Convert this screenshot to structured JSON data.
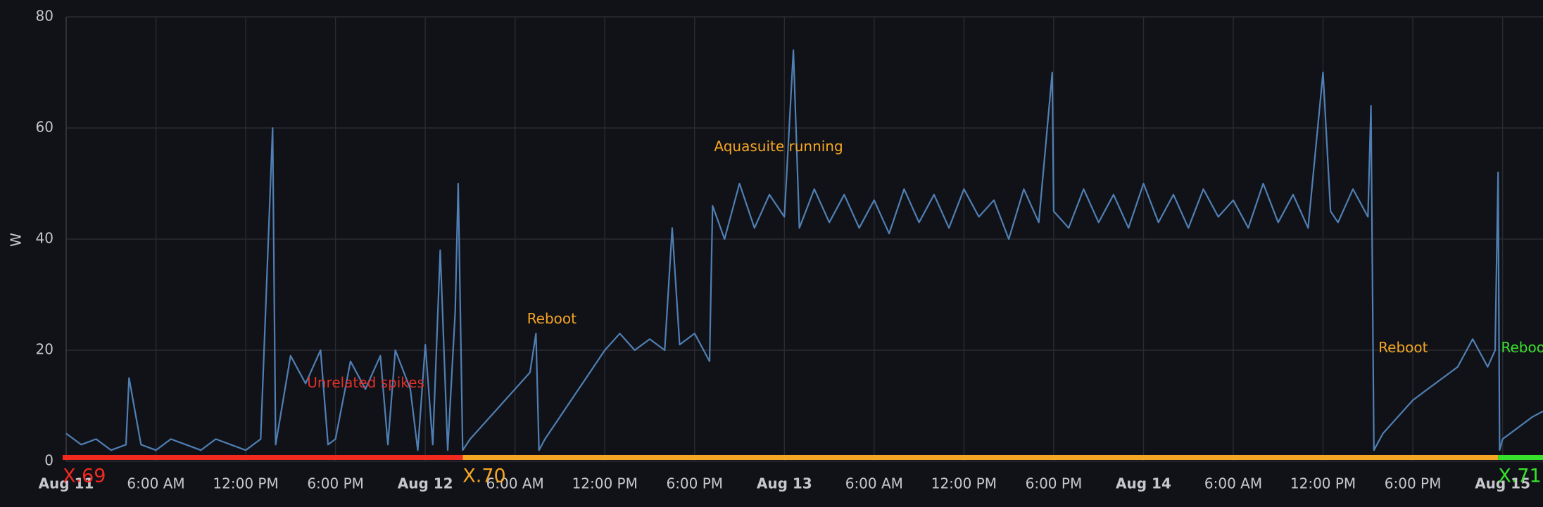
{
  "chart_data": {
    "type": "line",
    "y_label": "W",
    "x": [
      0,
      1,
      2,
      3,
      4,
      4.2,
      5,
      6,
      7,
      8,
      9,
      10,
      11,
      12,
      13,
      13.8,
      14,
      15,
      16,
      17,
      17.5,
      18,
      19,
      20,
      21,
      21.5,
      22,
      23,
      23.5,
      24,
      24.5,
      25,
      25.5,
      26,
      26.2,
      26.5,
      27,
      28,
      29,
      30,
      31,
      31.4,
      31.6,
      32,
      33,
      34,
      35,
      36,
      37,
      38,
      39,
      40,
      40.5,
      41,
      42,
      43,
      43.2,
      44,
      45,
      46,
      47,
      48,
      48.6,
      49,
      50,
      51,
      52,
      53,
      54,
      55,
      56,
      57,
      58,
      59,
      60,
      61,
      62,
      63,
      64,
      65,
      65.9,
      66,
      67,
      68,
      69,
      70,
      71,
      72,
      73,
      74,
      75,
      76,
      77,
      78,
      79,
      80,
      81,
      82,
      83,
      84,
      84.5,
      85,
      86,
      87,
      87.2,
      87.4,
      88,
      89,
      90,
      91,
      92,
      93,
      94,
      95,
      95.5,
      95.7,
      95.8,
      96,
      97,
      98,
      98.7
    ],
    "series": [
      {
        "name": "W",
        "color": "#4f7fb4",
        "values": [
          5,
          3,
          4,
          2,
          3,
          15,
          3,
          2,
          4,
          3,
          2,
          4,
          3,
          2,
          4,
          60,
          3,
          19,
          14,
          20,
          3,
          4,
          18,
          13,
          19,
          3,
          20,
          13,
          2,
          21,
          3,
          38,
          2,
          27,
          50,
          2,
          4,
          7,
          10,
          13,
          16,
          23,
          2,
          4,
          8,
          12,
          16,
          20,
          23,
          20,
          22,
          20,
          42,
          21,
          23,
          18,
          46,
          40,
          50,
          42,
          48,
          44,
          74,
          42,
          49,
          43,
          48,
          42,
          47,
          41,
          49,
          43,
          48,
          42,
          49,
          44,
          47,
          40,
          49,
          43,
          70,
          45,
          42,
          49,
          43,
          48,
          42,
          50,
          43,
          48,
          42,
          49,
          44,
          47,
          42,
          50,
          43,
          48,
          42,
          70,
          45,
          43,
          49,
          44,
          64,
          2,
          5,
          8,
          11,
          13,
          15,
          17,
          22,
          17,
          20,
          52,
          2,
          4,
          6,
          8,
          9
        ]
      }
    ],
    "xlim": [
      0,
      98.7
    ],
    "ylim": [
      0,
      80
    ],
    "yticks": [
      0,
      20,
      40,
      60,
      80
    ],
    "grid": true,
    "xticks": [
      {
        "value": 0,
        "label": "Aug 11"
      },
      {
        "value": 6,
        "label": "6:00 AM"
      },
      {
        "value": 12,
        "label": "12:00 PM"
      },
      {
        "value": 18,
        "label": "6:00 PM"
      },
      {
        "value": 24,
        "label": "Aug 12"
      },
      {
        "value": 30,
        "label": "6:00 AM"
      },
      {
        "value": 36,
        "label": "12:00 PM"
      },
      {
        "value": 42,
        "label": "6:00 PM"
      },
      {
        "value": 48,
        "label": "Aug 13"
      },
      {
        "value": 54,
        "label": "6:00 AM"
      },
      {
        "value": 60,
        "label": "12:00 PM"
      },
      {
        "value": 66,
        "label": "6:00 PM"
      },
      {
        "value": 72,
        "label": "Aug 14"
      },
      {
        "value": 78,
        "label": "6:00 AM"
      },
      {
        "value": 84,
        "label": "12:00 PM"
      },
      {
        "value": 90,
        "label": "6:00 PM"
      },
      {
        "value": 96,
        "label": "Aug 15"
      }
    ],
    "releases": [
      {
        "label": "X.69",
        "start": 0,
        "end": 26.5,
        "color": "#f2291f"
      },
      {
        "label": "X.70",
        "start": 26.5,
        "end": 95.7,
        "color": "#f5a623"
      },
      {
        "label": "X.71",
        "start": 95.7,
        "end": 98.7,
        "color": "#37e22c"
      }
    ],
    "annotations": [
      {
        "text": "Unrelated spikes",
        "x": 16.1,
        "y": 14,
        "color": "#e0302a"
      },
      {
        "text": "Reboot",
        "x": 30.8,
        "y": 25.5,
        "color": "#f5a623"
      },
      {
        "text": "Aquasuite running",
        "x": 43.3,
        "y": 56.5,
        "color": "#f5a623"
      },
      {
        "text": "Reboot",
        "x": 87.7,
        "y": 20.3,
        "color": "#f5a623"
      },
      {
        "text": "Reboot",
        "x": 95.9,
        "y": 20.3,
        "color": "#37e22c"
      }
    ]
  }
}
